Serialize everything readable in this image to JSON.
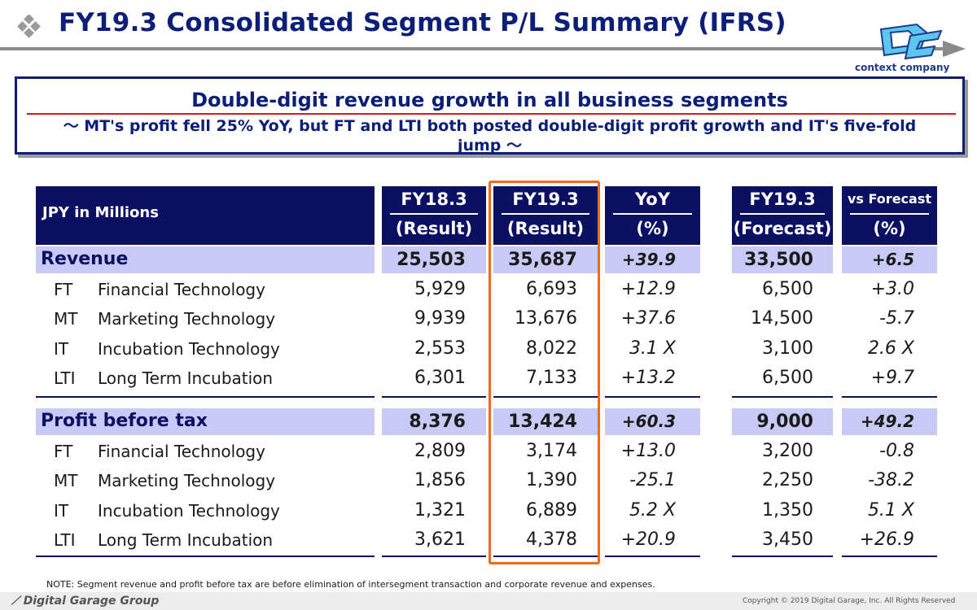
{
  "title": "FY19.3 Consolidated Segment P/L Summary (IFRS)",
  "logo_text": "context company",
  "message": {
    "headline": "Double-digit revenue growth in all business segments",
    "sub": "～ MT's profit fell 25% YoY, but FT and LTI both posted double-digit profit growth and IT's five-fold jump ～"
  },
  "table": {
    "unit_label": "JPY in Millions",
    "columns": [
      {
        "line1": "FY18.3",
        "line2": "(Result)"
      },
      {
        "line1": "FY19.3",
        "line2": "(Result)"
      },
      {
        "line1": "YoY",
        "line2": "(%)"
      },
      {
        "line1": "FY19.3",
        "line2": "(Forecast)"
      },
      {
        "line1": "vs Forecast",
        "line2": "(%)"
      }
    ],
    "revenue": {
      "label": "Revenue",
      "values": [
        "25,503",
        "35,687",
        "+39.9",
        "33,500",
        "+6.5"
      ],
      "rows": [
        {
          "code": "FT",
          "name": "Financial Technology",
          "values": [
            "5,929",
            "6,693",
            "+12.9",
            "6,500",
            "+3.0"
          ]
        },
        {
          "code": "MT",
          "name": "Marketing Technology",
          "values": [
            "9,939",
            "13,676",
            "+37.6",
            "14,500",
            "-5.7"
          ]
        },
        {
          "code": "IT",
          "name": "Incubation Technology",
          "values": [
            "2,553",
            "8,022",
            "3.1 X",
            "3,100",
            "2.6 X"
          ]
        },
        {
          "code": "LTI",
          "name": "Long Term Incubation",
          "values": [
            "6,301",
            "7,133",
            "+13.2",
            "6,500",
            "+9.7"
          ]
        }
      ]
    },
    "profit": {
      "label": "Profit before tax",
      "values": [
        "8,376",
        "13,424",
        "+60.3",
        "9,000",
        "+49.2"
      ],
      "rows": [
        {
          "code": "FT",
          "name": "Financial Technology",
          "values": [
            "2,809",
            "3,174",
            "+13.0",
            "3,200",
            "-0.8"
          ]
        },
        {
          "code": "MT",
          "name": "Marketing Technology",
          "values": [
            "1,856",
            "1,390",
            "-25.1",
            "2,250",
            "-38.2"
          ]
        },
        {
          "code": "IT",
          "name": "Incubation Technology",
          "values": [
            "1,321",
            "6,889",
            "5.2 X",
            "1,350",
            "5.1 X"
          ]
        },
        {
          "code": "LTI",
          "name": "Long Term Incubation",
          "values": [
            "3,621",
            "4,378",
            "+20.9",
            "3,450",
            "+26.9"
          ]
        }
      ]
    }
  },
  "note": "NOTE: Segment revenue and profit before tax are before elimination of intersegment transaction and corporate revenue and expenses.",
  "footer": {
    "company": "Digital Garage Group",
    "copyright": "Copyright © 2019 Digital Garage, Inc. All Rights Reserved"
  },
  "colors": {
    "title": "#0b1f78",
    "header_bg": "#0b1062",
    "section_bg": "#c9c9f5",
    "highlight": "#ee6a1c",
    "red_line": "#d9141b"
  }
}
